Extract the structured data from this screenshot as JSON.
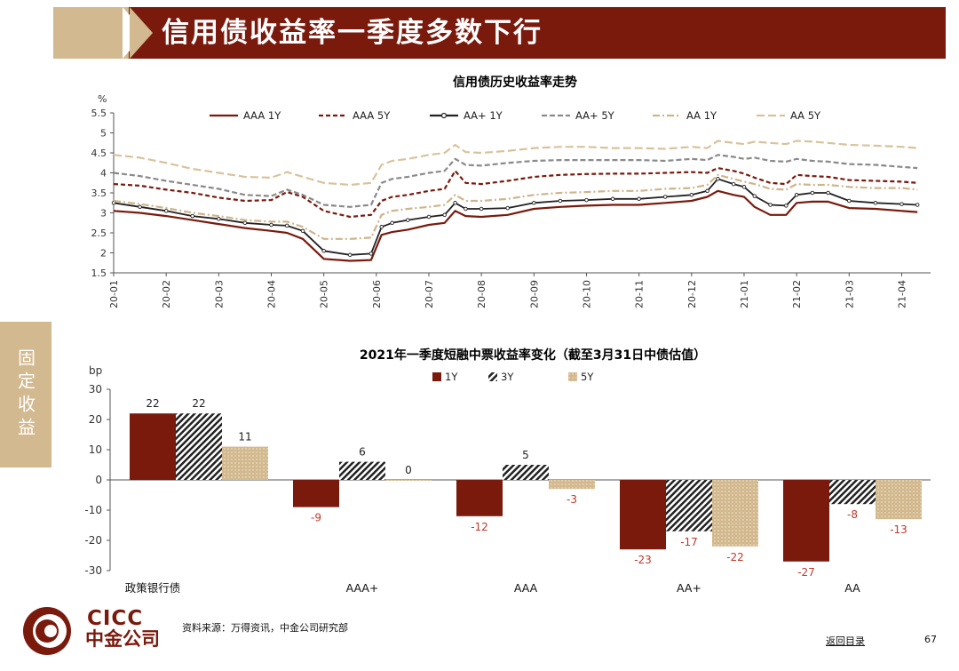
{
  "header": {
    "title": "信用债收益率一季度多数下行"
  },
  "sidebar": {
    "label": "固定收益"
  },
  "footer": {
    "source": "资料来源：万得资讯，中金公司研究部",
    "back_link": "返回目录",
    "page_number": "67"
  },
  "logo": {
    "latin": "CICC",
    "chinese": "中金公司"
  },
  "colors": {
    "brand": "#7a1a0d",
    "tan": "#d3b98f"
  },
  "chart_data": [
    {
      "type": "line",
      "title": "信用债历史收益率走势",
      "ylabel": "%",
      "ylim": [
        1.5,
        5.5
      ],
      "yticks": [
        "1.5",
        "2",
        "2.5",
        "3",
        "3.5",
        "4",
        "4.5",
        "5",
        "5.5"
      ],
      "legend_position": "top",
      "x_ticks": [
        "20-01",
        "20-02",
        "20-03",
        "20-04",
        "20-05",
        "20-06",
        "20-07",
        "20-08",
        "20-09",
        "20-10",
        "20-11",
        "20-12",
        "21-01",
        "21-02",
        "21-03",
        "21-04"
      ],
      "x_keypoints": [
        0,
        0.5,
        1,
        1.5,
        2,
        2.5,
        3,
        3.3,
        3.6,
        4,
        4.5,
        4.9,
        5.1,
        5.3,
        5.6,
        6,
        6.3,
        6.5,
        6.7,
        7,
        7.5,
        8,
        8.5,
        9,
        9.5,
        10,
        10.5,
        11,
        11.3,
        11.5,
        11.8,
        12,
        12.2,
        12.5,
        12.8,
        13,
        13.3,
        13.6,
        14,
        14.5,
        15,
        15.3
      ],
      "series": [
        {
          "name": "AAA 1Y",
          "color": "#7a1a0d",
          "dash": "solid",
          "values": [
            3.05,
            3.0,
            2.92,
            2.82,
            2.72,
            2.62,
            2.55,
            2.5,
            2.35,
            1.85,
            1.8,
            1.82,
            2.45,
            2.52,
            2.58,
            2.7,
            2.75,
            3.05,
            2.92,
            2.9,
            2.95,
            3.1,
            3.15,
            3.18,
            3.2,
            3.2,
            3.25,
            3.3,
            3.4,
            3.55,
            3.45,
            3.4,
            3.15,
            2.95,
            2.95,
            3.25,
            3.28,
            3.28,
            3.12,
            3.1,
            3.05,
            3.02
          ]
        },
        {
          "name": "AAA 5Y",
          "color": "#7a1a0d",
          "dash": "5,3",
          "values": [
            3.72,
            3.68,
            3.58,
            3.5,
            3.38,
            3.3,
            3.32,
            3.52,
            3.4,
            3.05,
            2.9,
            2.95,
            3.3,
            3.4,
            3.45,
            3.55,
            3.6,
            4.05,
            3.75,
            3.72,
            3.8,
            3.9,
            3.95,
            3.97,
            3.98,
            3.98,
            4.0,
            4.02,
            4.0,
            4.12,
            4.05,
            3.98,
            3.88,
            3.75,
            3.72,
            3.95,
            3.92,
            3.9,
            3.82,
            3.8,
            3.78,
            3.75
          ]
        },
        {
          "name": "AA+ 1Y",
          "color": "#222222",
          "dash": "solid",
          "marker": true,
          "values": [
            3.25,
            3.15,
            3.05,
            2.92,
            2.85,
            2.75,
            2.7,
            2.68,
            2.55,
            2.05,
            1.95,
            1.98,
            2.65,
            2.75,
            2.82,
            2.9,
            2.95,
            3.25,
            3.1,
            3.1,
            3.12,
            3.25,
            3.3,
            3.32,
            3.35,
            3.35,
            3.4,
            3.45,
            3.55,
            3.85,
            3.72,
            3.65,
            3.42,
            3.2,
            3.18,
            3.45,
            3.5,
            3.5,
            3.3,
            3.25,
            3.22,
            3.2
          ]
        },
        {
          "name": "AA+ 5Y",
          "color": "#8a8a8a",
          "dash": "6,3",
          "values": [
            4.0,
            3.92,
            3.8,
            3.7,
            3.6,
            3.45,
            3.42,
            3.58,
            3.45,
            3.2,
            3.15,
            3.2,
            3.75,
            3.85,
            3.9,
            4.0,
            4.05,
            4.35,
            4.2,
            4.18,
            4.25,
            4.3,
            4.32,
            4.32,
            4.32,
            4.32,
            4.3,
            4.35,
            4.32,
            4.45,
            4.4,
            4.35,
            4.38,
            4.3,
            4.28,
            4.35,
            4.3,
            4.28,
            4.22,
            4.2,
            4.15,
            4.12
          ]
        },
        {
          "name": "AA 1Y",
          "color": "#cdb58b",
          "dash": "8,3,2,3",
          "values": [
            3.3,
            3.22,
            3.12,
            3.0,
            2.92,
            2.82,
            2.78,
            2.78,
            2.65,
            2.35,
            2.35,
            2.38,
            2.95,
            3.05,
            3.1,
            3.15,
            3.2,
            3.45,
            3.3,
            3.3,
            3.35,
            3.45,
            3.5,
            3.52,
            3.55,
            3.55,
            3.6,
            3.62,
            3.7,
            3.95,
            3.85,
            3.78,
            3.72,
            3.6,
            3.58,
            3.72,
            3.7,
            3.7,
            3.65,
            3.62,
            3.62,
            3.58
          ]
        },
        {
          "name": "AA 5Y",
          "color": "#d9c29b",
          "dash": "9,4",
          "values": [
            4.45,
            4.38,
            4.25,
            4.1,
            4.0,
            3.9,
            3.88,
            4.02,
            3.9,
            3.75,
            3.7,
            3.75,
            4.2,
            4.3,
            4.35,
            4.45,
            4.5,
            4.7,
            4.52,
            4.5,
            4.55,
            4.62,
            4.65,
            4.65,
            4.62,
            4.62,
            4.6,
            4.65,
            4.62,
            4.8,
            4.75,
            4.72,
            4.78,
            4.75,
            4.72,
            4.8,
            4.78,
            4.75,
            4.7,
            4.68,
            4.65,
            4.62
          ]
        }
      ]
    },
    {
      "type": "bar",
      "title": "2021年一季度短融中票收益率变化（截至3月31日中债估值）",
      "ylabel": "bp",
      "ylim": [
        -30,
        30
      ],
      "yticks": [
        "30",
        "20",
        "10",
        "0",
        "-10",
        "-20",
        "-30"
      ],
      "legend_position": "top",
      "categories": [
        "政策银行债",
        "AAA+",
        "AAA",
        "AA+",
        "AA"
      ],
      "series": [
        {
          "name": "1Y",
          "color": "#7a1a0d",
          "values": [
            22,
            -9,
            -12,
            -23,
            -27
          ],
          "labels": [
            "22",
            "-9",
            "-12",
            "-23",
            "-27"
          ]
        },
        {
          "name": "3Y",
          "color": "#222222",
          "pattern": "stripes",
          "values": [
            22,
            6,
            5,
            -17,
            -8
          ],
          "labels": [
            "22",
            "6",
            "5",
            "-17",
            "-8"
          ]
        },
        {
          "name": "5Y",
          "color": "#d3b98f",
          "pattern": "dots",
          "values": [
            11,
            0,
            -3,
            -22,
            -13
          ],
          "labels": [
            "11",
            "0",
            "-3",
            "-22",
            "-13"
          ]
        }
      ]
    }
  ]
}
